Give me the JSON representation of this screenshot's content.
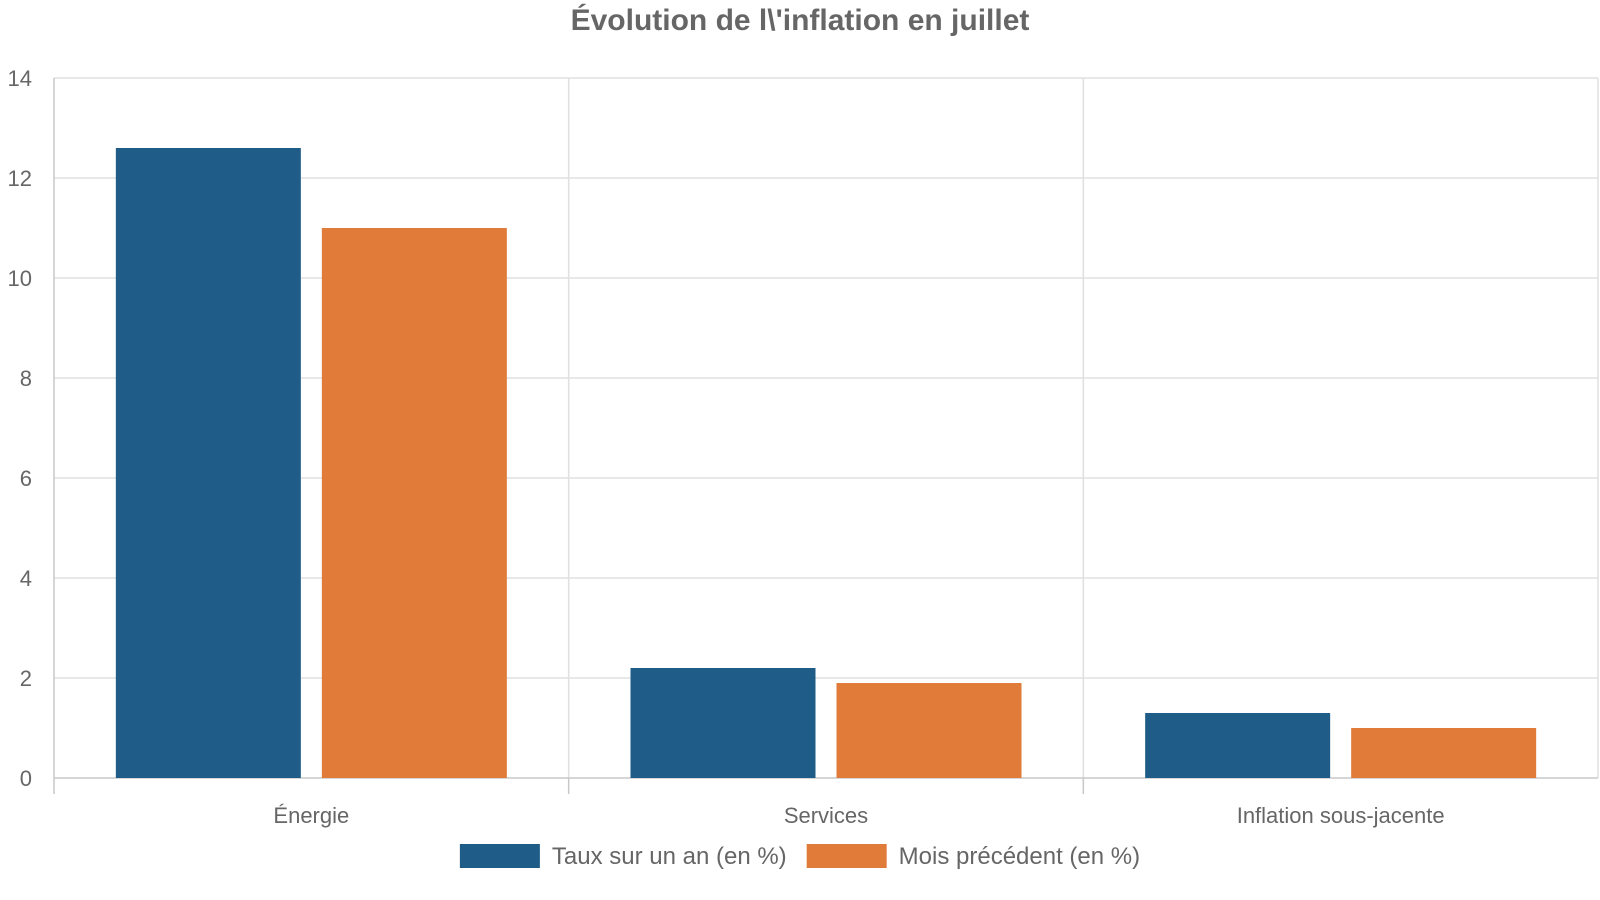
{
  "chart_data": {
    "type": "bar",
    "title": "Évolution de l\\'inflation en juillet",
    "categories": [
      "Énergie",
      "Services",
      "Inflation sous-jacente"
    ],
    "series": [
      {
        "name": "Taux sur un an (en %)",
        "color": "#1f5c87",
        "values": [
          12.6,
          2.2,
          1.3
        ]
      },
      {
        "name": "Mois précédent (en %)",
        "color": "#e07b39",
        "values": [
          11.0,
          1.9,
          1.0
        ]
      }
    ],
    "y_ticks": [
      0,
      2,
      4,
      6,
      8,
      10,
      12,
      14
    ],
    "ylim": [
      0,
      14
    ],
    "grid": true,
    "legend_position": "bottom-center"
  }
}
